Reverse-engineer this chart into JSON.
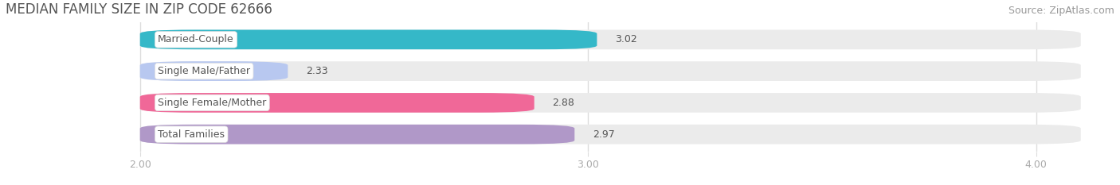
{
  "title": "MEDIAN FAMILY SIZE IN ZIP CODE 62666",
  "source": "Source: ZipAtlas.com",
  "categories": [
    "Married-Couple",
    "Single Male/Father",
    "Single Female/Mother",
    "Total Families"
  ],
  "values": [
    3.02,
    2.33,
    2.88,
    2.97
  ],
  "bar_colors": [
    "#35b8c8",
    "#b8c8f0",
    "#f06898",
    "#b098c8"
  ],
  "xlim_left": 1.7,
  "xlim_right": 4.15,
  "x_axis_start": 2.0,
  "xticks": [
    2.0,
    3.0,
    4.0
  ],
  "xticklabels": [
    "2.00",
    "3.00",
    "4.00"
  ],
  "bar_height": 0.62,
  "bar_gap": 0.15,
  "figsize": [
    14.06,
    2.33
  ],
  "dpi": 100,
  "bg_color": "#ffffff",
  "bar_bg_color": "#ebebeb",
  "title_fontsize": 12,
  "source_fontsize": 9,
  "label_fontsize": 9,
  "value_fontsize": 9,
  "tick_fontsize": 9,
  "title_color": "#555555",
  "source_color": "#999999",
  "label_color": "#555555",
  "value_color": "#555555",
  "tick_color": "#aaaaaa",
  "grid_color": "#dddddd"
}
